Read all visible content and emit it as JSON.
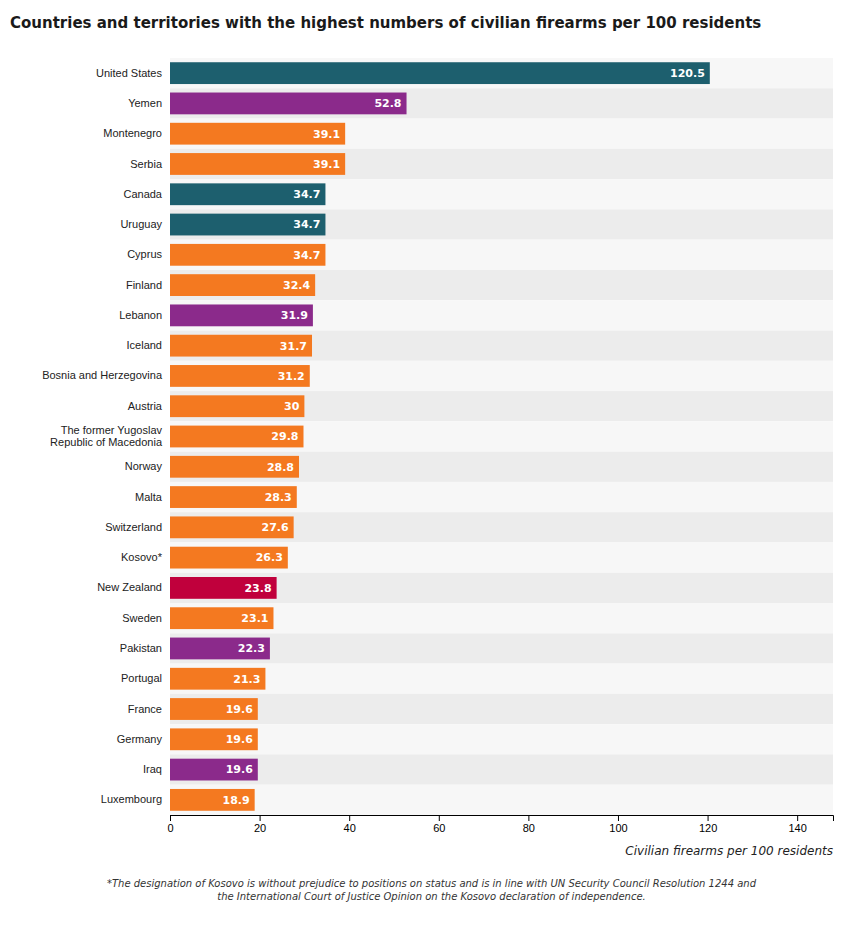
{
  "chart_data": {
    "type": "bar",
    "orientation": "horizontal",
    "title": "Countries and territories with the highest numbers of civilian firearms per 100 residents",
    "x_label": "Civilian firearms per 100 residents",
    "annotations": [
      "*The designation of Kosovo is without prejudice to positions on status and is in line with UN Security Council Resolution 1244 and\nthe International Court of Justice Opinion on the Kosovo declaration of independence."
    ],
    "categories": [
      "United States",
      "Yemen",
      "Montenegro",
      "Serbia",
      "Canada",
      "Uruguay",
      "Cyprus",
      "Finland",
      "Lebanon",
      "Iceland",
      "Bosnia and Herzegovina",
      "Austria",
      "The former Yugoslav\nRepublic of Macedonia",
      "Norway",
      "Malta",
      "Switzerland",
      "Kosovo*",
      "New Zealand",
      "Sweden",
      "Pakistan",
      "Portugal",
      "France",
      "Germany",
      "Iraq",
      "Luxembourg"
    ],
    "values": [
      120.5,
      52.8,
      39.1,
      39.1,
      34.7,
      34.7,
      34.7,
      32.4,
      31.9,
      31.7,
      31.2,
      30.0,
      29.8,
      28.8,
      28.3,
      27.6,
      26.3,
      23.8,
      23.1,
      22.3,
      21.3,
      19.6,
      19.6,
      19.6,
      18.9
    ],
    "colors": [
      "#1d5f6e",
      "#8b2a8b",
      "#f47920",
      "#f47920",
      "#1d5f6e",
      "#1d5f6e",
      "#f47920",
      "#f47920",
      "#8b2a8b",
      "#f47920",
      "#f47920",
      "#f47920",
      "#f47920",
      "#f47920",
      "#f47920",
      "#f47920",
      "#f47920",
      "#c0003c",
      "#f47920",
      "#8b2a8b",
      "#f47920",
      "#f47920",
      "#f47920",
      "#8b2a8b",
      "#f47920"
    ],
    "xlim": [
      0,
      148
    ],
    "xticks": [
      0,
      20,
      40,
      60,
      80,
      100,
      120,
      140
    ],
    "data_labels": true,
    "grid": false
  }
}
